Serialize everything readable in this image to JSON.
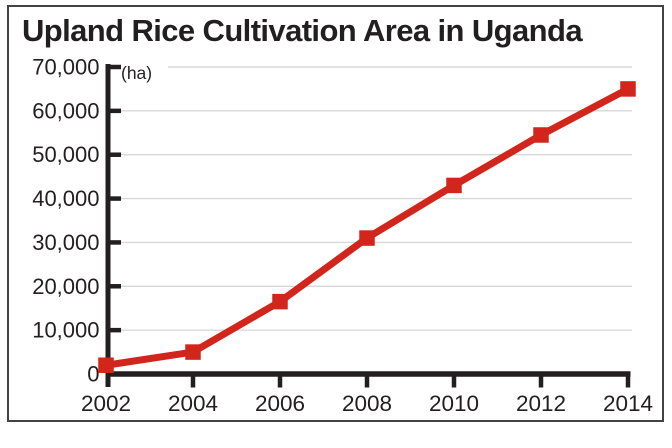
{
  "chart_data": {
    "type": "line",
    "title": "Upland Rice Cultivation Area in Uganda",
    "unit_label": "(ha)",
    "x": [
      2002,
      2004,
      2006,
      2008,
      2010,
      2012,
      2014
    ],
    "xtick_labels": [
      "2002",
      "2004",
      "2006",
      "2008",
      "2010",
      "2012",
      "2014"
    ],
    "values": [
      2000,
      5000,
      16500,
      31000,
      43000,
      54500,
      65000
    ],
    "ylim": [
      0,
      70000
    ],
    "yticks": [
      0,
      10000,
      20000,
      30000,
      40000,
      50000,
      60000,
      70000
    ],
    "ytick_labels": [
      "0",
      "10,000",
      "20,000",
      "30,000",
      "40,000",
      "50,000",
      "60,000",
      "70,000"
    ],
    "grid": true,
    "legend": false,
    "marker": "square",
    "line_color": "#d2261c",
    "axis_color": "#231f20",
    "grid_color": "#d8d8d8",
    "frame_border_color": "#434343"
  }
}
